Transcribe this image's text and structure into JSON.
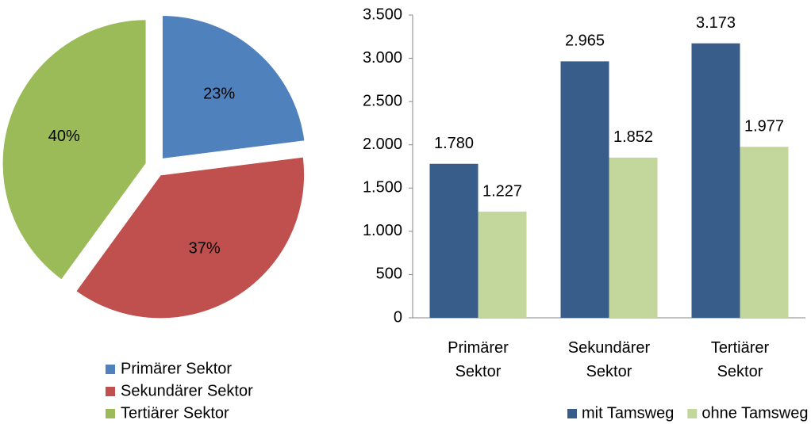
{
  "chart_data": [
    {
      "type": "pie",
      "categories": [
        "Primärer Sektor",
        "Sekundärer Sektor",
        "Tertiärer Sektor"
      ],
      "values": [
        23,
        37,
        40
      ],
      "value_labels": [
        "23%",
        "37%",
        "40%"
      ],
      "colors": [
        "#4f81bd",
        "#c0504d",
        "#9bbb59"
      ],
      "exploded": true,
      "legend": "bottom"
    },
    {
      "type": "bar",
      "categories": [
        "Primärer Sektor",
        "Sekundärer Sektor",
        "Tertiärer Sektor"
      ],
      "series": [
        {
          "name": "mit Tamsweg",
          "color": "#385d8a",
          "values": [
            1780,
            2965,
            3173
          ],
          "value_labels": [
            "1.780",
            "2.965",
            "3.173"
          ]
        },
        {
          "name": "ohne Tamsweg",
          "color": "#c3d69b",
          "values": [
            1227,
            1852,
            1977
          ],
          "value_labels": [
            "1.227",
            "1.852",
            "1.977"
          ]
        }
      ],
      "ylim": [
        0,
        3500
      ],
      "yticks": [
        0,
        500,
        {
          "value": 1000,
          "label": "1.000"
        },
        {
          "value": 1500,
          "label": "1.500"
        },
        {
          "value": 2000,
          "label": "2.000"
        },
        {
          "value": 2500,
          "label": "2.500"
        },
        {
          "value": 3000,
          "label": "3.000"
        },
        {
          "value": 3500,
          "label": "3.500"
        }
      ],
      "grid": false,
      "legend": "bottom"
    }
  ]
}
